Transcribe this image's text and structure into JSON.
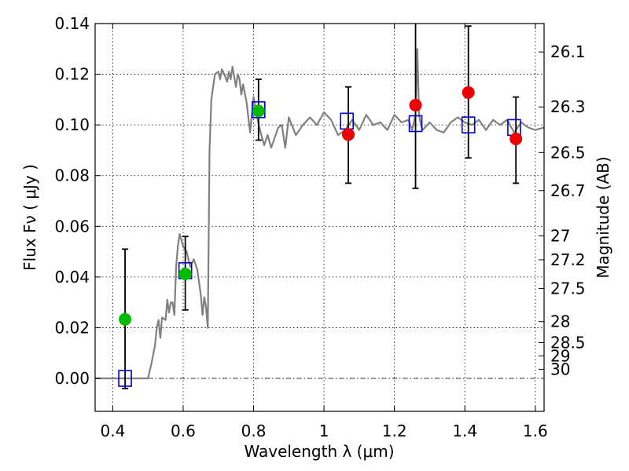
{
  "chart_data": {
    "type": "scatter",
    "title": "",
    "xlabel": "Wavelength  λ (μm)",
    "ylabel": "Flux  Fν  ( μJy )",
    "ylabel_right": "Magnitude (AB)",
    "xlim": [
      0.35,
      1.625
    ],
    "ylim": [
      -0.013,
      0.14
    ],
    "grid": true,
    "x_ticks": [
      0.4,
      0.6,
      0.8,
      1.0,
      1.2,
      1.4,
      1.6
    ],
    "x_tick_labels": [
      "0.4",
      "0.6",
      "0.8",
      "1",
      "1.2",
      "1.4",
      "1.6"
    ],
    "y_ticks": [
      0.0,
      0.02,
      0.04,
      0.06,
      0.08,
      0.1,
      0.12,
      0.14
    ],
    "y_tick_labels": [
      "0.00",
      "0.02",
      "0.04",
      "0.06",
      "0.08",
      "0.10",
      "0.12",
      "0.14"
    ],
    "right_ticks": [
      {
        "label": "26.1",
        "flux": 0.1288
      },
      {
        "label": "26.3",
        "flux": 0.1071
      },
      {
        "label": "26.5",
        "flux": 0.0891
      },
      {
        "label": "26.7",
        "flux": 0.0741
      },
      {
        "label": "27",
        "flux": 0.0562
      },
      {
        "label": "27.2",
        "flux": 0.0468
      },
      {
        "label": "27.5",
        "flux": 0.0355
      },
      {
        "label": "28",
        "flux": 0.0224
      },
      {
        "label": "28.5",
        "flux": 0.0141
      },
      {
        "label": "29",
        "flux": 0.0089
      },
      {
        "label": "30",
        "flux": 0.0036
      }
    ],
    "series": [
      {
        "kind": "line",
        "color": "#808080",
        "x": [
          0.35,
          0.49,
          0.5,
          0.51,
          0.52,
          0.525,
          0.53,
          0.535,
          0.54,
          0.55,
          0.555,
          0.56,
          0.565,
          0.57,
          0.575,
          0.58,
          0.585,
          0.59,
          0.6,
          0.61,
          0.62,
          0.63,
          0.64,
          0.65,
          0.655,
          0.66,
          0.665,
          0.67,
          0.675,
          0.68,
          0.69,
          0.7,
          0.705,
          0.71,
          0.72,
          0.725,
          0.73,
          0.735,
          0.74,
          0.75,
          0.755,
          0.76,
          0.765,
          0.77,
          0.78,
          0.79,
          0.8,
          0.81,
          0.82,
          0.83,
          0.84,
          0.85,
          0.86,
          0.87,
          0.88,
          0.89,
          0.9,
          0.92,
          0.94,
          0.96,
          0.98,
          1.0,
          1.02,
          1.04,
          1.06,
          1.08,
          1.1,
          1.12,
          1.14,
          1.16,
          1.18,
          1.2,
          1.22,
          1.24,
          1.25,
          1.26,
          1.265,
          1.27,
          1.275,
          1.28,
          1.3,
          1.32,
          1.34,
          1.36,
          1.38,
          1.4,
          1.42,
          1.44,
          1.46,
          1.48,
          1.5,
          1.52,
          1.54,
          1.56,
          1.58,
          1.6,
          1.625
        ],
        "y": [
          0.0,
          0.0,
          0.0,
          0.006,
          0.013,
          0.02,
          0.023,
          0.016,
          0.024,
          0.023,
          0.031,
          0.026,
          0.03,
          0.03,
          0.025,
          0.044,
          0.052,
          0.057,
          0.052,
          0.05,
          0.044,
          0.047,
          0.043,
          0.033,
          0.025,
          0.032,
          0.028,
          0.02,
          0.09,
          0.11,
          0.12,
          0.121,
          0.118,
          0.122,
          0.119,
          0.117,
          0.121,
          0.118,
          0.123,
          0.115,
          0.12,
          0.118,
          0.112,
          0.116,
          0.109,
          0.097,
          0.111,
          0.103,
          0.097,
          0.092,
          0.096,
          0.091,
          0.095,
          0.099,
          0.1,
          0.091,
          0.103,
          0.096,
          0.1,
          0.103,
          0.1,
          0.105,
          0.102,
          0.096,
          0.098,
          0.102,
          0.098,
          0.104,
          0.1,
          0.101,
          0.098,
          0.104,
          0.101,
          0.102,
          0.098,
          0.104,
          0.13,
          0.104,
          0.1,
          0.098,
          0.101,
          0.098,
          0.097,
          0.101,
          0.103,
          0.101,
          0.1,
          0.102,
          0.098,
          0.102,
          0.1,
          0.102,
          0.097,
          0.101,
          0.099,
          0.098,
          0.099
        ]
      },
      {
        "kind": "errorbar",
        "color": "#000000",
        "points": [
          {
            "x": 0.435,
            "lo": -0.004,
            "hi": 0.051
          },
          {
            "x": 0.606,
            "lo": 0.027,
            "hi": 0.056
          },
          {
            "x": 0.814,
            "lo": 0.094,
            "hi": 0.118
          },
          {
            "x": 1.069,
            "lo": 0.077,
            "hi": 0.115
          },
          {
            "x": 1.26,
            "lo": 0.075,
            "hi": 0.14
          },
          {
            "x": 1.41,
            "lo": 0.087,
            "hi": 0.139
          },
          {
            "x": 1.545,
            "lo": 0.077,
            "hi": 0.111
          }
        ]
      },
      {
        "kind": "scatter",
        "marker": "square-open",
        "color": "#0000cc",
        "x": [
          0.435,
          0.606,
          0.814,
          1.065,
          1.26,
          1.41,
          1.54
        ],
        "y": [
          0.0,
          0.0425,
          0.106,
          0.1015,
          0.1005,
          0.1,
          0.099
        ]
      },
      {
        "kind": "scatter",
        "marker": "circle",
        "color": "#00bb00",
        "x": [
          0.435,
          0.606,
          0.814
        ],
        "y": [
          0.0233,
          0.0412,
          0.1055
        ]
      },
      {
        "kind": "scatter",
        "marker": "circle",
        "color": "#ee0000",
        "x": [
          1.069,
          1.26,
          1.41,
          1.545
        ],
        "y": [
          0.0962,
          0.1078,
          0.1128,
          0.0945
        ]
      }
    ]
  }
}
